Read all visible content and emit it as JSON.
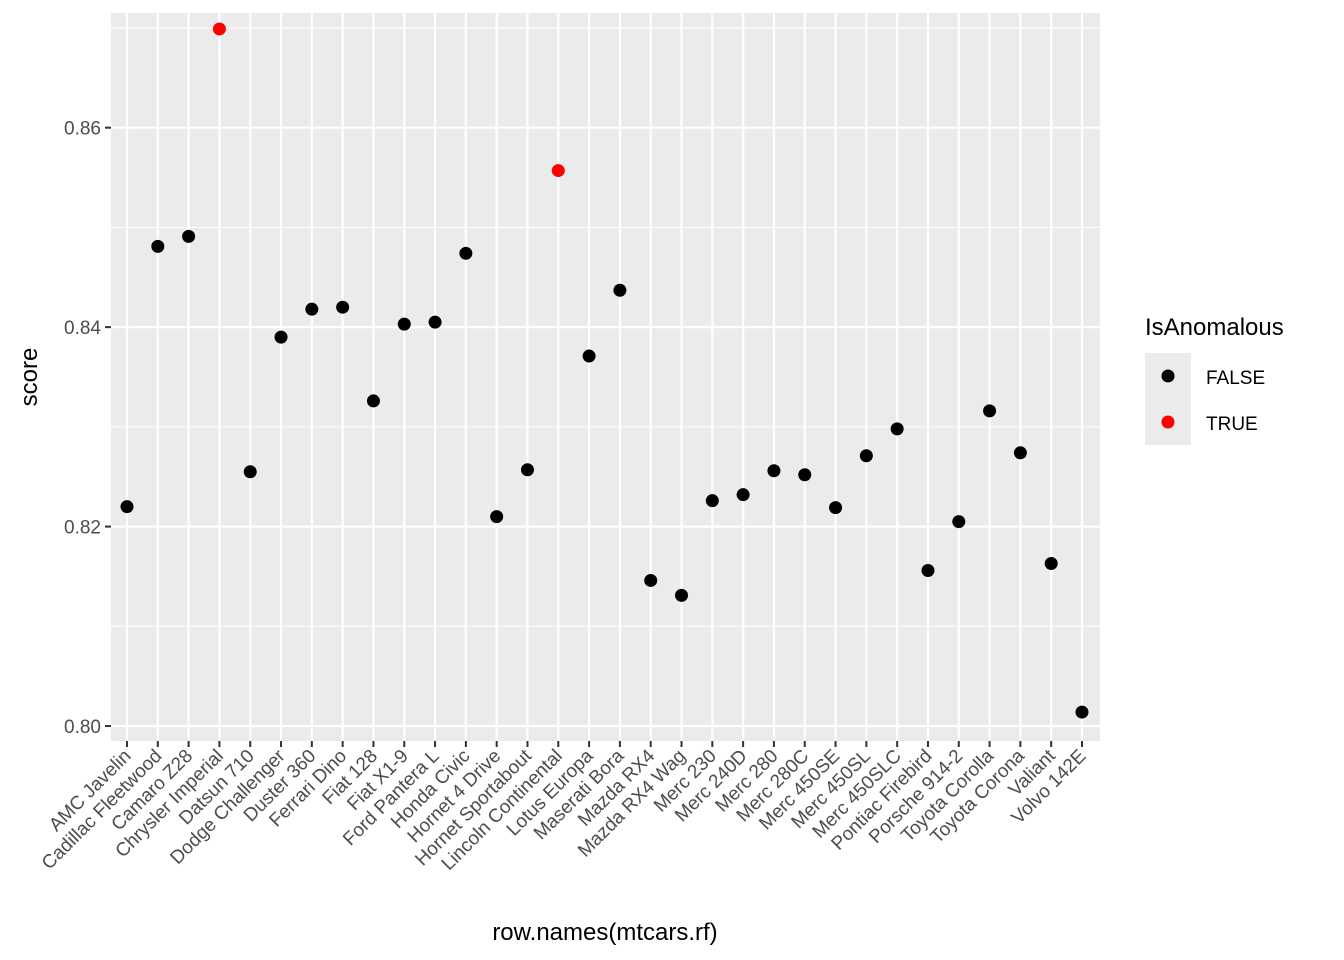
{
  "chart_data": {
    "type": "scatter",
    "title": "",
    "xlabel": "row.names(mtcars.rf)",
    "ylabel": "score",
    "ylim": [
      0.7985,
      0.8715
    ],
    "yticks": [
      0.8,
      0.82,
      0.84,
      0.86
    ],
    "ytick_labels": [
      "0.80",
      "0.82",
      "0.84",
      "0.86"
    ],
    "grid": true,
    "categories": [
      "AMC Javelin",
      "Cadillac Fleetwood",
      "Camaro Z28",
      "Chrysler Imperial",
      "Datsun 710",
      "Dodge Challenger",
      "Duster 360",
      "Ferrari Dino",
      "Fiat 128",
      "Fiat X1-9",
      "Ford Pantera L",
      "Honda Civic",
      "Hornet 4 Drive",
      "Hornet Sportabout",
      "Lincoln Continental",
      "Lotus Europa",
      "Maserati Bora",
      "Mazda RX4",
      "Mazda RX4 Wag",
      "Merc 230",
      "Merc 240D",
      "Merc 280",
      "Merc 280C",
      "Merc 450SE",
      "Merc 450SL",
      "Merc 450SLC",
      "Pontiac Firebird",
      "Porsche 914-2",
      "Toyota Corolla",
      "Toyota Corona",
      "Valiant",
      "Volvo 142E"
    ],
    "values": [
      0.822,
      0.8481,
      0.8491,
      0.8699,
      0.8255,
      0.839,
      0.8418,
      0.842,
      0.8326,
      0.8403,
      0.8405,
      0.8474,
      0.821,
      0.8257,
      0.8557,
      0.8371,
      0.8437,
      0.8146,
      0.8131,
      0.8226,
      0.8232,
      0.8256,
      0.8252,
      0.8219,
      0.8271,
      0.8298,
      0.8156,
      0.8205,
      0.8316,
      0.8274,
      0.8163,
      0.8014
    ],
    "anomalous": [
      false,
      false,
      false,
      true,
      false,
      false,
      false,
      false,
      false,
      false,
      false,
      false,
      false,
      false,
      true,
      false,
      false,
      false,
      false,
      false,
      false,
      false,
      false,
      false,
      false,
      false,
      false,
      false,
      false,
      false,
      false,
      false
    ],
    "legend": {
      "title": "IsAnomalous",
      "position": "right",
      "entries": [
        {
          "label": "FALSE",
          "color": "#000000"
        },
        {
          "label": "TRUE",
          "color": "#ff0000"
        }
      ]
    },
    "colors": {
      "panel_bg": "#ebebeb",
      "grid": "#ffffff",
      "false_point": "#000000",
      "true_point": "#ff0000"
    }
  }
}
